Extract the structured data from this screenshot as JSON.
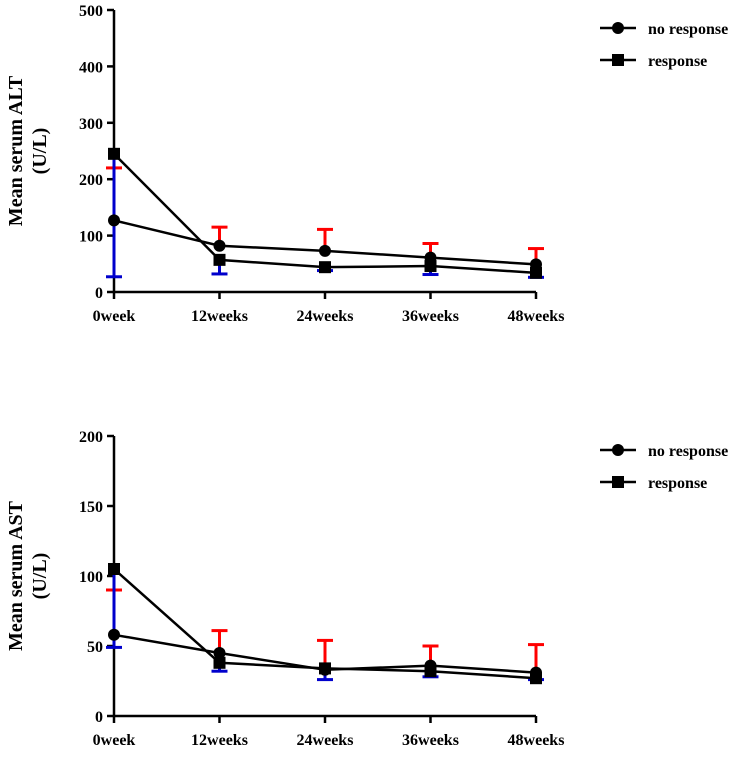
{
  "chart_data": [
    {
      "type": "line",
      "categories": [
        "0week",
        "12weeks",
        "24weeks",
        "36weeks",
        "48weeks"
      ],
      "ylabel_line1": "Mean serum ALT",
      "ylabel_line2": "(U/L)",
      "ylim": [
        0,
        500
      ],
      "yticks": [
        0,
        100,
        200,
        300,
        400,
        500
      ],
      "series": [
        {
          "name": "no response",
          "marker": "circle",
          "values": [
            127,
            82,
            73,
            61,
            49
          ],
          "error_upper": [
            220,
            115,
            111,
            86,
            77
          ],
          "error_color": "#ff0000"
        },
        {
          "name": "response",
          "marker": "square",
          "values": [
            245,
            57,
            44,
            46,
            34
          ],
          "error_lower": [
            27,
            32,
            38,
            31,
            26
          ],
          "error_color": "#0000cc"
        }
      ]
    },
    {
      "type": "line",
      "categories": [
        "0week",
        "12weeks",
        "24weeks",
        "36weeks",
        "48weeks"
      ],
      "ylabel_line1": "Mean serum AST",
      "ylabel_line2": "(U/L)",
      "ylim": [
        0,
        200
      ],
      "yticks": [
        0,
        50,
        100,
        150,
        200
      ],
      "series": [
        {
          "name": "no response",
          "marker": "circle",
          "values": [
            58,
            45,
            33,
            36,
            31
          ],
          "error_upper": [
            90,
            61,
            54,
            50,
            51
          ],
          "error_color": "#ff0000"
        },
        {
          "name": "response",
          "marker": "square",
          "values": [
            105,
            38,
            34,
            32,
            27
          ],
          "error_lower": [
            49,
            32,
            26,
            28,
            26
          ],
          "error_color": "#0000cc"
        }
      ]
    }
  ]
}
